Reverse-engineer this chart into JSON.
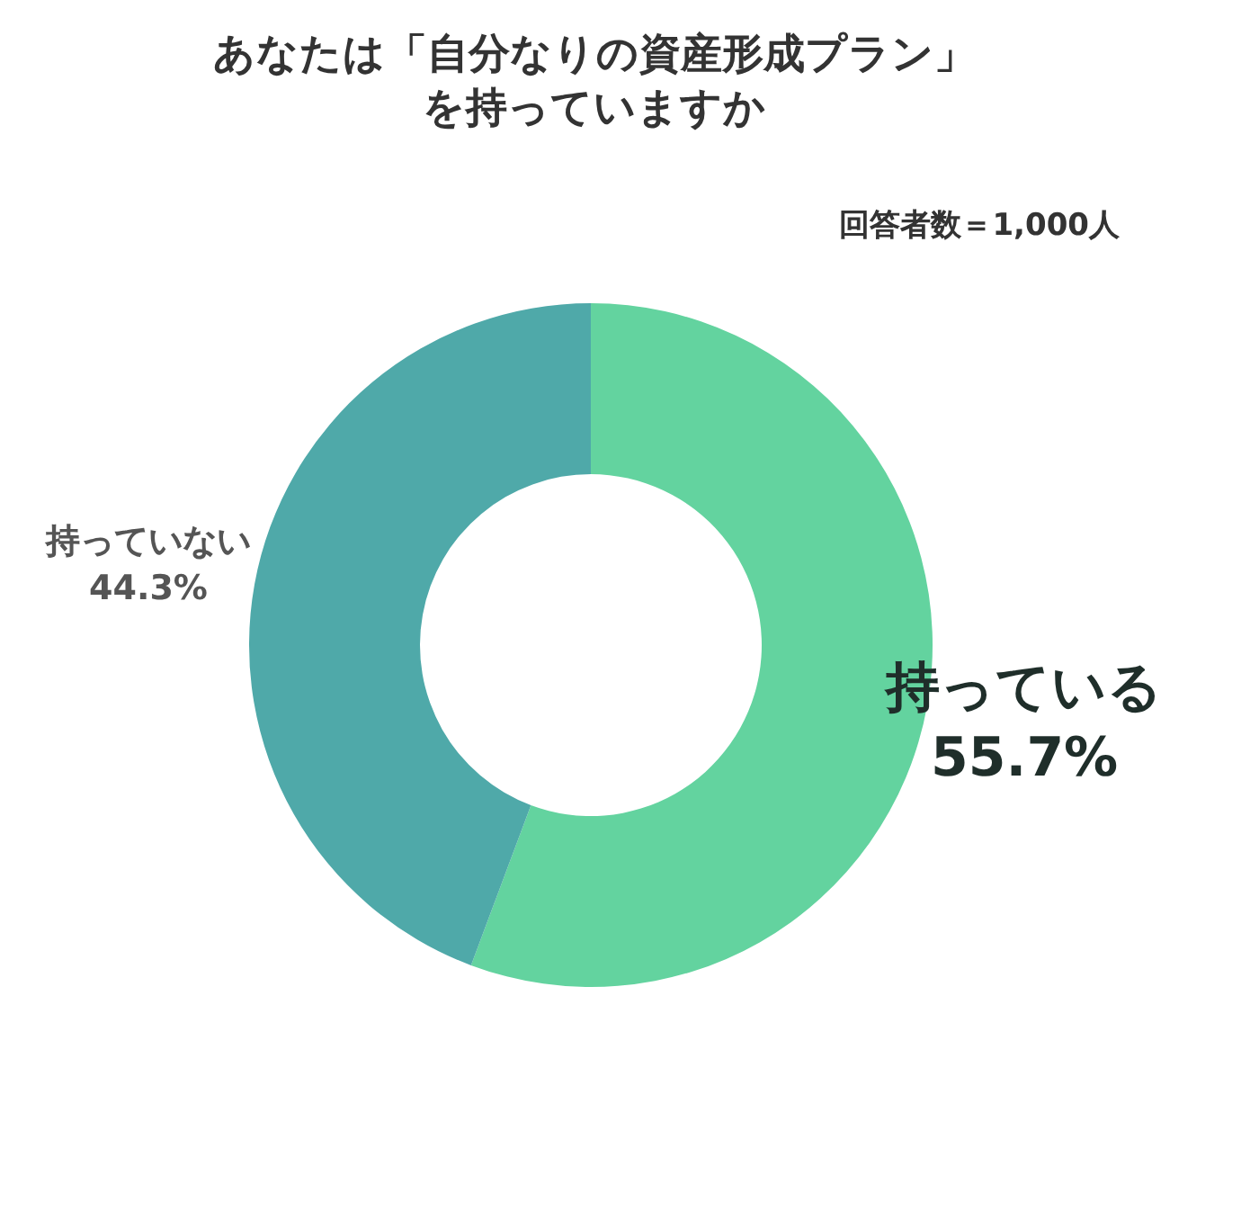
{
  "chart_data": {
    "type": "donut",
    "title": "あなたは「自分なりの資産形成プラン」を持っていますか",
    "subtitle": "回答者数＝1,000人",
    "categories": [
      "持っている",
      "持っていない"
    ],
    "values": [
      55.7,
      44.3
    ],
    "value_labels": [
      "55.7%",
      "44.3%"
    ],
    "colors": [
      "#63d39f",
      "#4fa9a9"
    ],
    "data_labels": true
  }
}
